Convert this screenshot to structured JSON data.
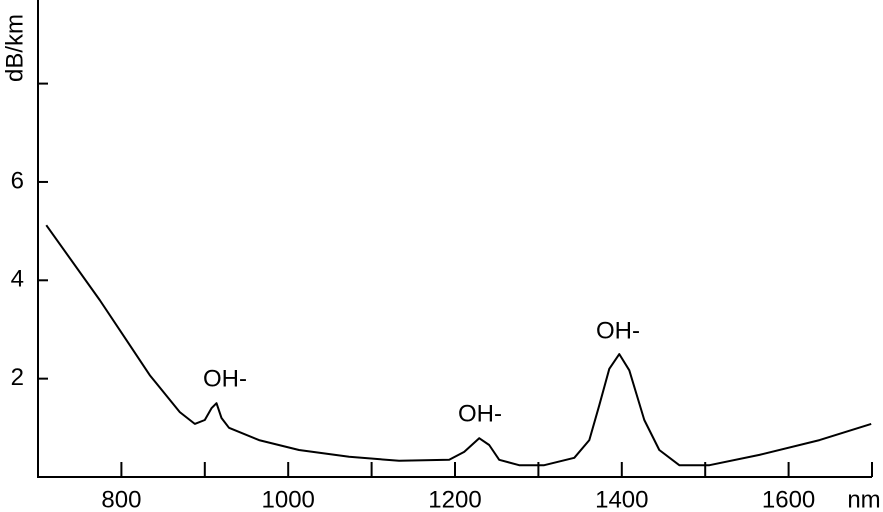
{
  "chart_data": {
    "type": "line",
    "x_label": "nm",
    "y_label": "dB/km",
    "annotations": [
      "OH-",
      "OH-",
      "OH-"
    ],
    "xlim": [
      700,
      1700
    ],
    "ylim": [
      0,
      9.7
    ],
    "xticks": [
      {
        "value": 800,
        "label": "800"
      },
      {
        "value": 900,
        "label": null
      },
      {
        "value": 1000,
        "label": "1000"
      },
      {
        "value": 1100,
        "label": null
      },
      {
        "value": 1200,
        "label": "1200"
      },
      {
        "value": 1300,
        "label": null
      },
      {
        "value": 1400,
        "label": "1400"
      },
      {
        "value": 1500,
        "label": null
      },
      {
        "value": 1600,
        "label": "1600"
      },
      {
        "value": 1700,
        "label": null
      }
    ],
    "yticks": [
      2,
      4,
      6,
      {
        "value": 8,
        "label": null
      }
    ],
    "color": "#000000",
    "x": [
      710,
      774,
      834,
      870,
      888,
      900,
      908,
      914,
      920,
      929,
      965,
      1013,
      1073,
      1133,
      1193,
      1211,
      1229,
      1241,
      1253,
      1277,
      1307,
      1343,
      1361,
      1373,
      1385,
      1397,
      1409,
      1427,
      1445,
      1469,
      1505,
      1565,
      1637,
      1699
    ],
    "values": [
      5.12,
      3.6,
      2.07,
      1.32,
      1.08,
      1.16,
      1.4,
      1.5,
      1.2,
      1.0,
      0.75,
      0.55,
      0.41,
      0.33,
      0.35,
      0.51,
      0.79,
      0.65,
      0.35,
      0.24,
      0.24,
      0.39,
      0.75,
      1.46,
      2.2,
      2.5,
      2.17,
      1.16,
      0.55,
      0.24,
      0.24,
      0.45,
      0.75,
      1.08
    ]
  }
}
